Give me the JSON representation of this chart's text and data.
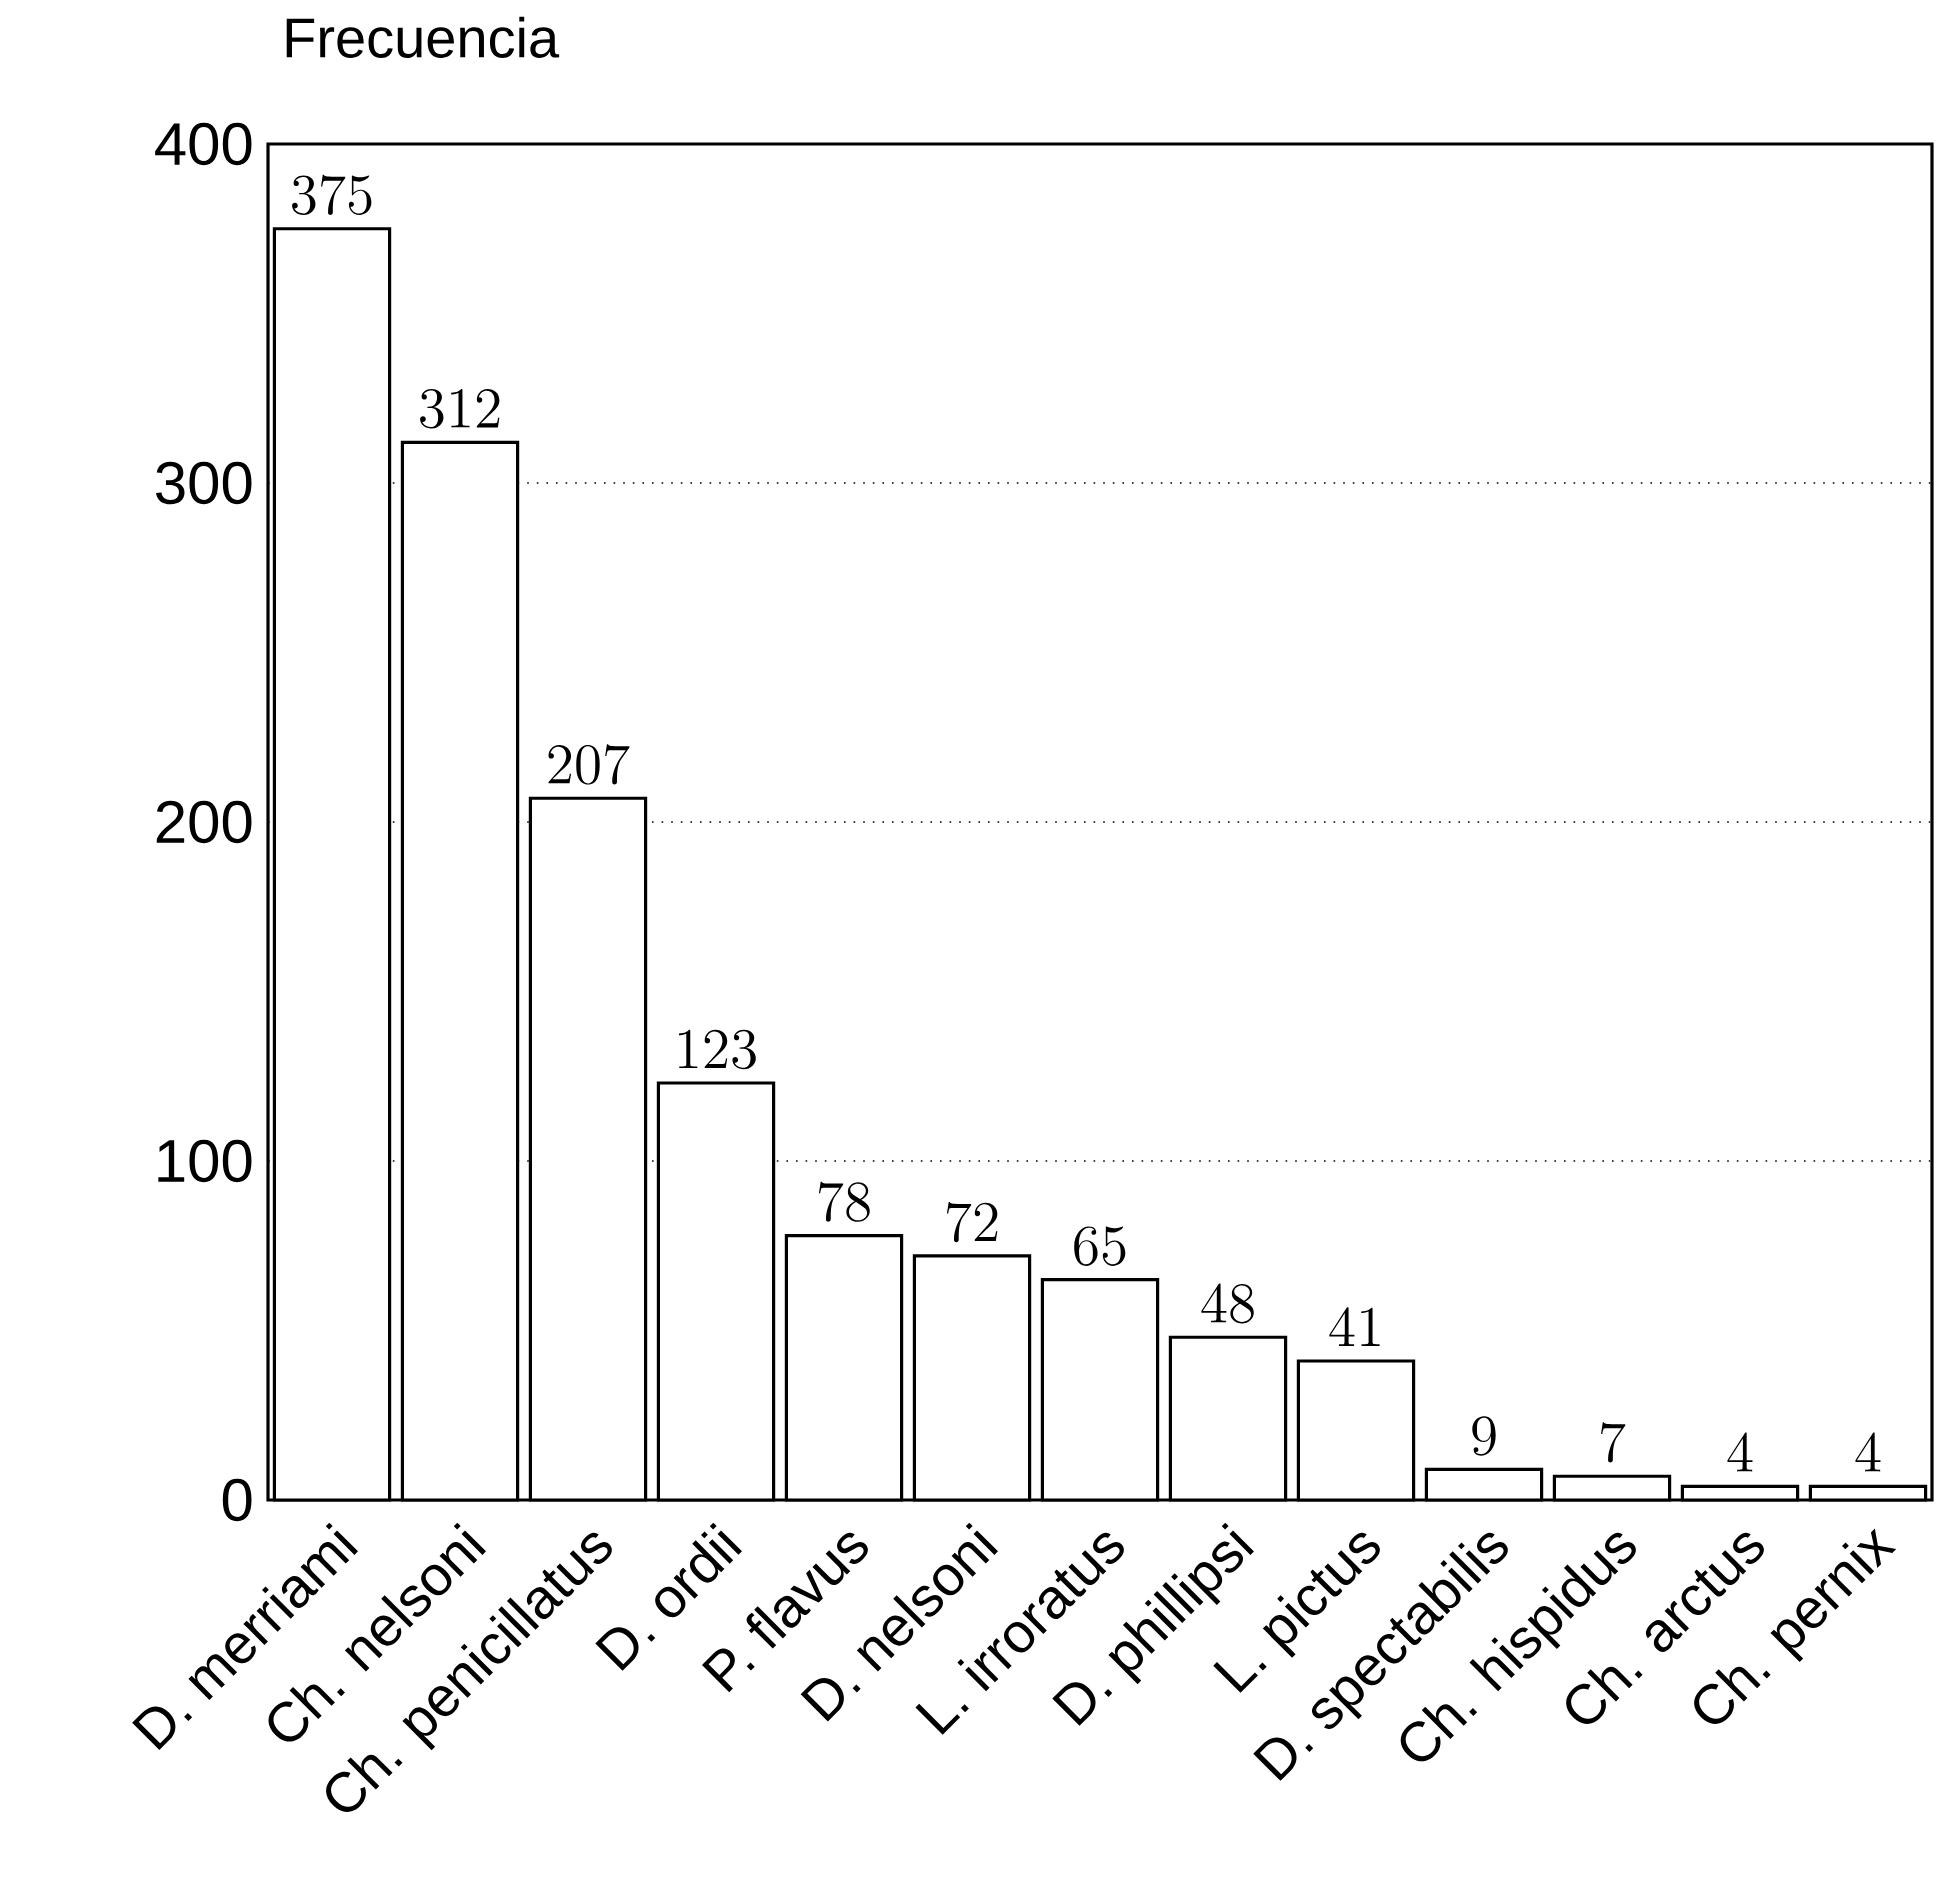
{
  "chart_data": {
    "type": "bar",
    "ylabel": "Frecuencia",
    "categories": [
      "D. merriami",
      "Ch. nelsoni",
      "Ch. penicillatus",
      "D. ordii",
      "P. flavus",
      "D. nelsoni",
      "L. irroratus",
      "D. phillipsi",
      "L. pictus",
      "D. spectabilis",
      "Ch. hispidus",
      "Ch. arctus",
      "Ch. pernix"
    ],
    "values": [
      375,
      312,
      207,
      123,
      78,
      72,
      65,
      48,
      41,
      9,
      7,
      4,
      4
    ],
    "color": "#ffffff",
    "ylim": [
      0,
      400
    ],
    "yticks": [
      0,
      100,
      200,
      300,
      400
    ],
    "grid": "y",
    "data_labels": true
  }
}
